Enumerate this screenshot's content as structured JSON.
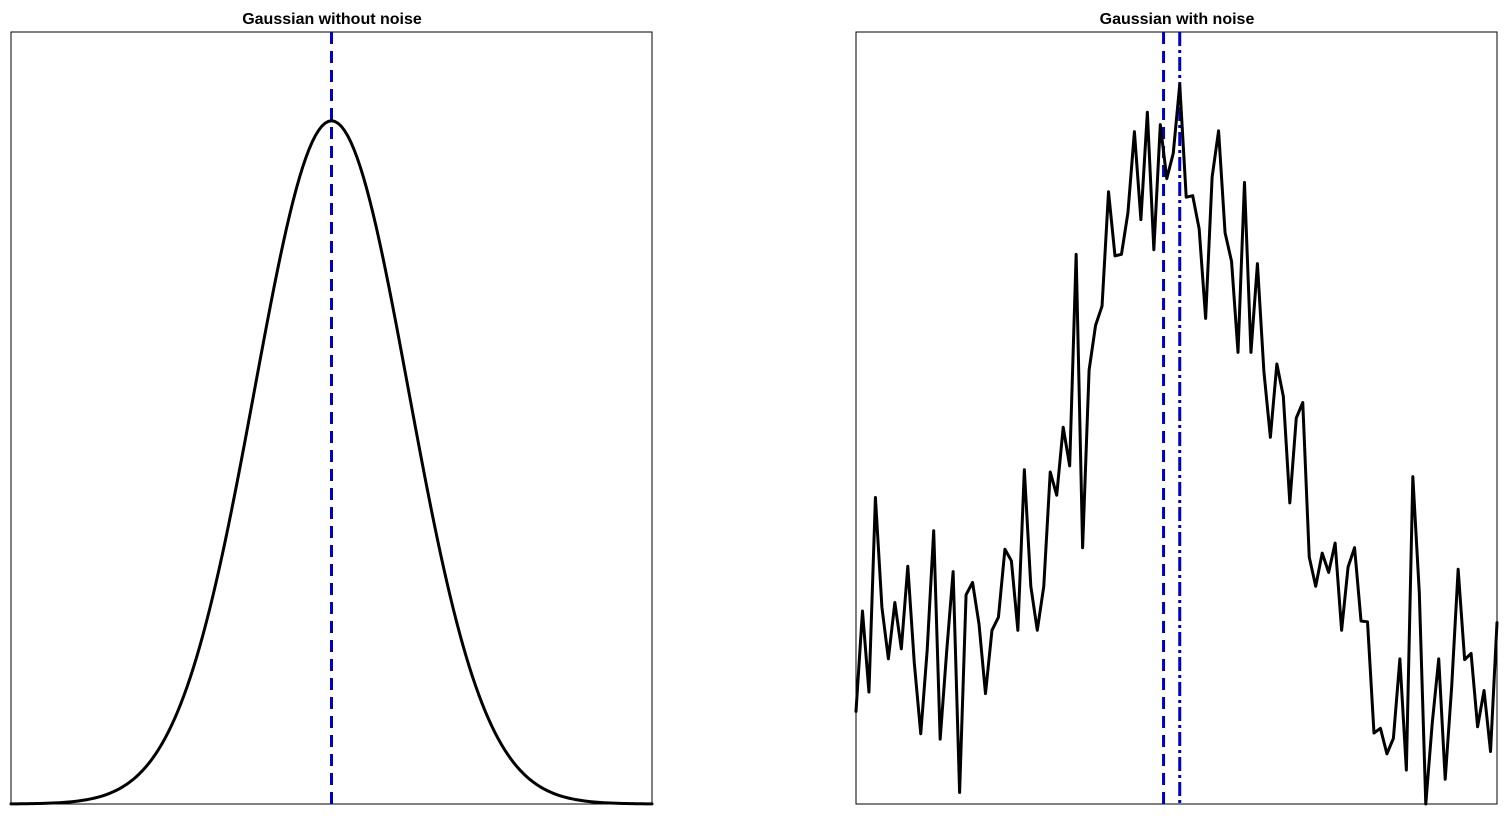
{
  "chart_data": [
    {
      "type": "line",
      "title": "Gaussian without noise",
      "xlabel": "",
      "ylabel": "",
      "xlim": [
        0,
        100
      ],
      "ylim": [
        0,
        1.13
      ],
      "axes_ticks": false,
      "grid": false,
      "curve": {
        "kind": "gaussian",
        "amplitude": 1.0,
        "mean": 50,
        "sigma": 12,
        "x_start": 0,
        "x_end": 100,
        "samples": 201,
        "color": "#000000"
      },
      "vlines": [
        {
          "x": 50,
          "style": "dashed",
          "color": "#0000cc"
        }
      ]
    },
    {
      "type": "line",
      "title": "Gaussian with noise",
      "xlabel": "",
      "ylabel": "",
      "xlim": [
        0,
        99
      ],
      "ylim": [
        0,
        1.0
      ],
      "axes_ticks": false,
      "grid": false,
      "series": [
        {
          "color": "#000000",
          "x": [
            0,
            1,
            2,
            3,
            4,
            5,
            6,
            7,
            8,
            9,
            10,
            11,
            12,
            13,
            14,
            15,
            16,
            17,
            18,
            19,
            20,
            21,
            22,
            23,
            24,
            25,
            26,
            27,
            28,
            29,
            30,
            31,
            32,
            33,
            34,
            35,
            36,
            37,
            38,
            39,
            40,
            41,
            42,
            43,
            44,
            45,
            46,
            47,
            48,
            49,
            50,
            51,
            52,
            53,
            54,
            55,
            56,
            57,
            58,
            59,
            60,
            61,
            62,
            63,
            64,
            65,
            66,
            67,
            68,
            69,
            70,
            71,
            72,
            73,
            74,
            75,
            76,
            77,
            78,
            79,
            80,
            81,
            82,
            83,
            84,
            85,
            86,
            87,
            88,
            89,
            90,
            91,
            92,
            93,
            94,
            95,
            96,
            97,
            98,
            99
          ],
          "values": [
            0.12,
            0.25,
            0.145,
            0.397,
            0.255,
            0.188,
            0.261,
            0.201,
            0.308,
            0.183,
            0.091,
            0.2,
            0.354,
            0.084,
            0.197,
            0.301,
            0.015,
            0.271,
            0.287,
            0.233,
            0.143,
            0.225,
            0.242,
            0.33,
            0.315,
            0.225,
            0.433,
            0.282,
            0.225,
            0.282,
            0.43,
            0.4,
            0.488,
            0.438,
            0.712,
            0.332,
            0.562,
            0.62,
            0.645,
            0.793,
            0.71,
            0.712,
            0.766,
            0.871,
            0.757,
            0.896,
            0.718,
            0.88,
            0.81,
            0.843,
            0.932,
            0.786,
            0.788,
            0.745,
            0.629,
            0.812,
            0.872,
            0.74,
            0.703,
            0.585,
            0.805,
            0.585,
            0.7,
            0.56,
            0.475,
            0.57,
            0.528,
            0.39,
            0.5,
            0.52,
            0.32,
            0.282,
            0.325,
            0.3,
            0.338,
            0.225,
            0.307,
            0.332,
            0.237,
            0.236,
            0.092,
            0.098,
            0.065,
            0.085,
            0.188,
            0.044,
            0.424,
            0.274,
            0.0,
            0.105,
            0.188,
            0.032,
            0.152,
            0.304,
            0.187,
            0.195,
            0.1,
            0.147,
            0.068,
            0.235
          ]
        }
      ],
      "vlines": [
        {
          "x": 47.5,
          "style": "dashed",
          "color": "#0000cc"
        },
        {
          "x": 50.0,
          "style": "dashdot",
          "color": "#0000cc"
        }
      ]
    }
  ]
}
